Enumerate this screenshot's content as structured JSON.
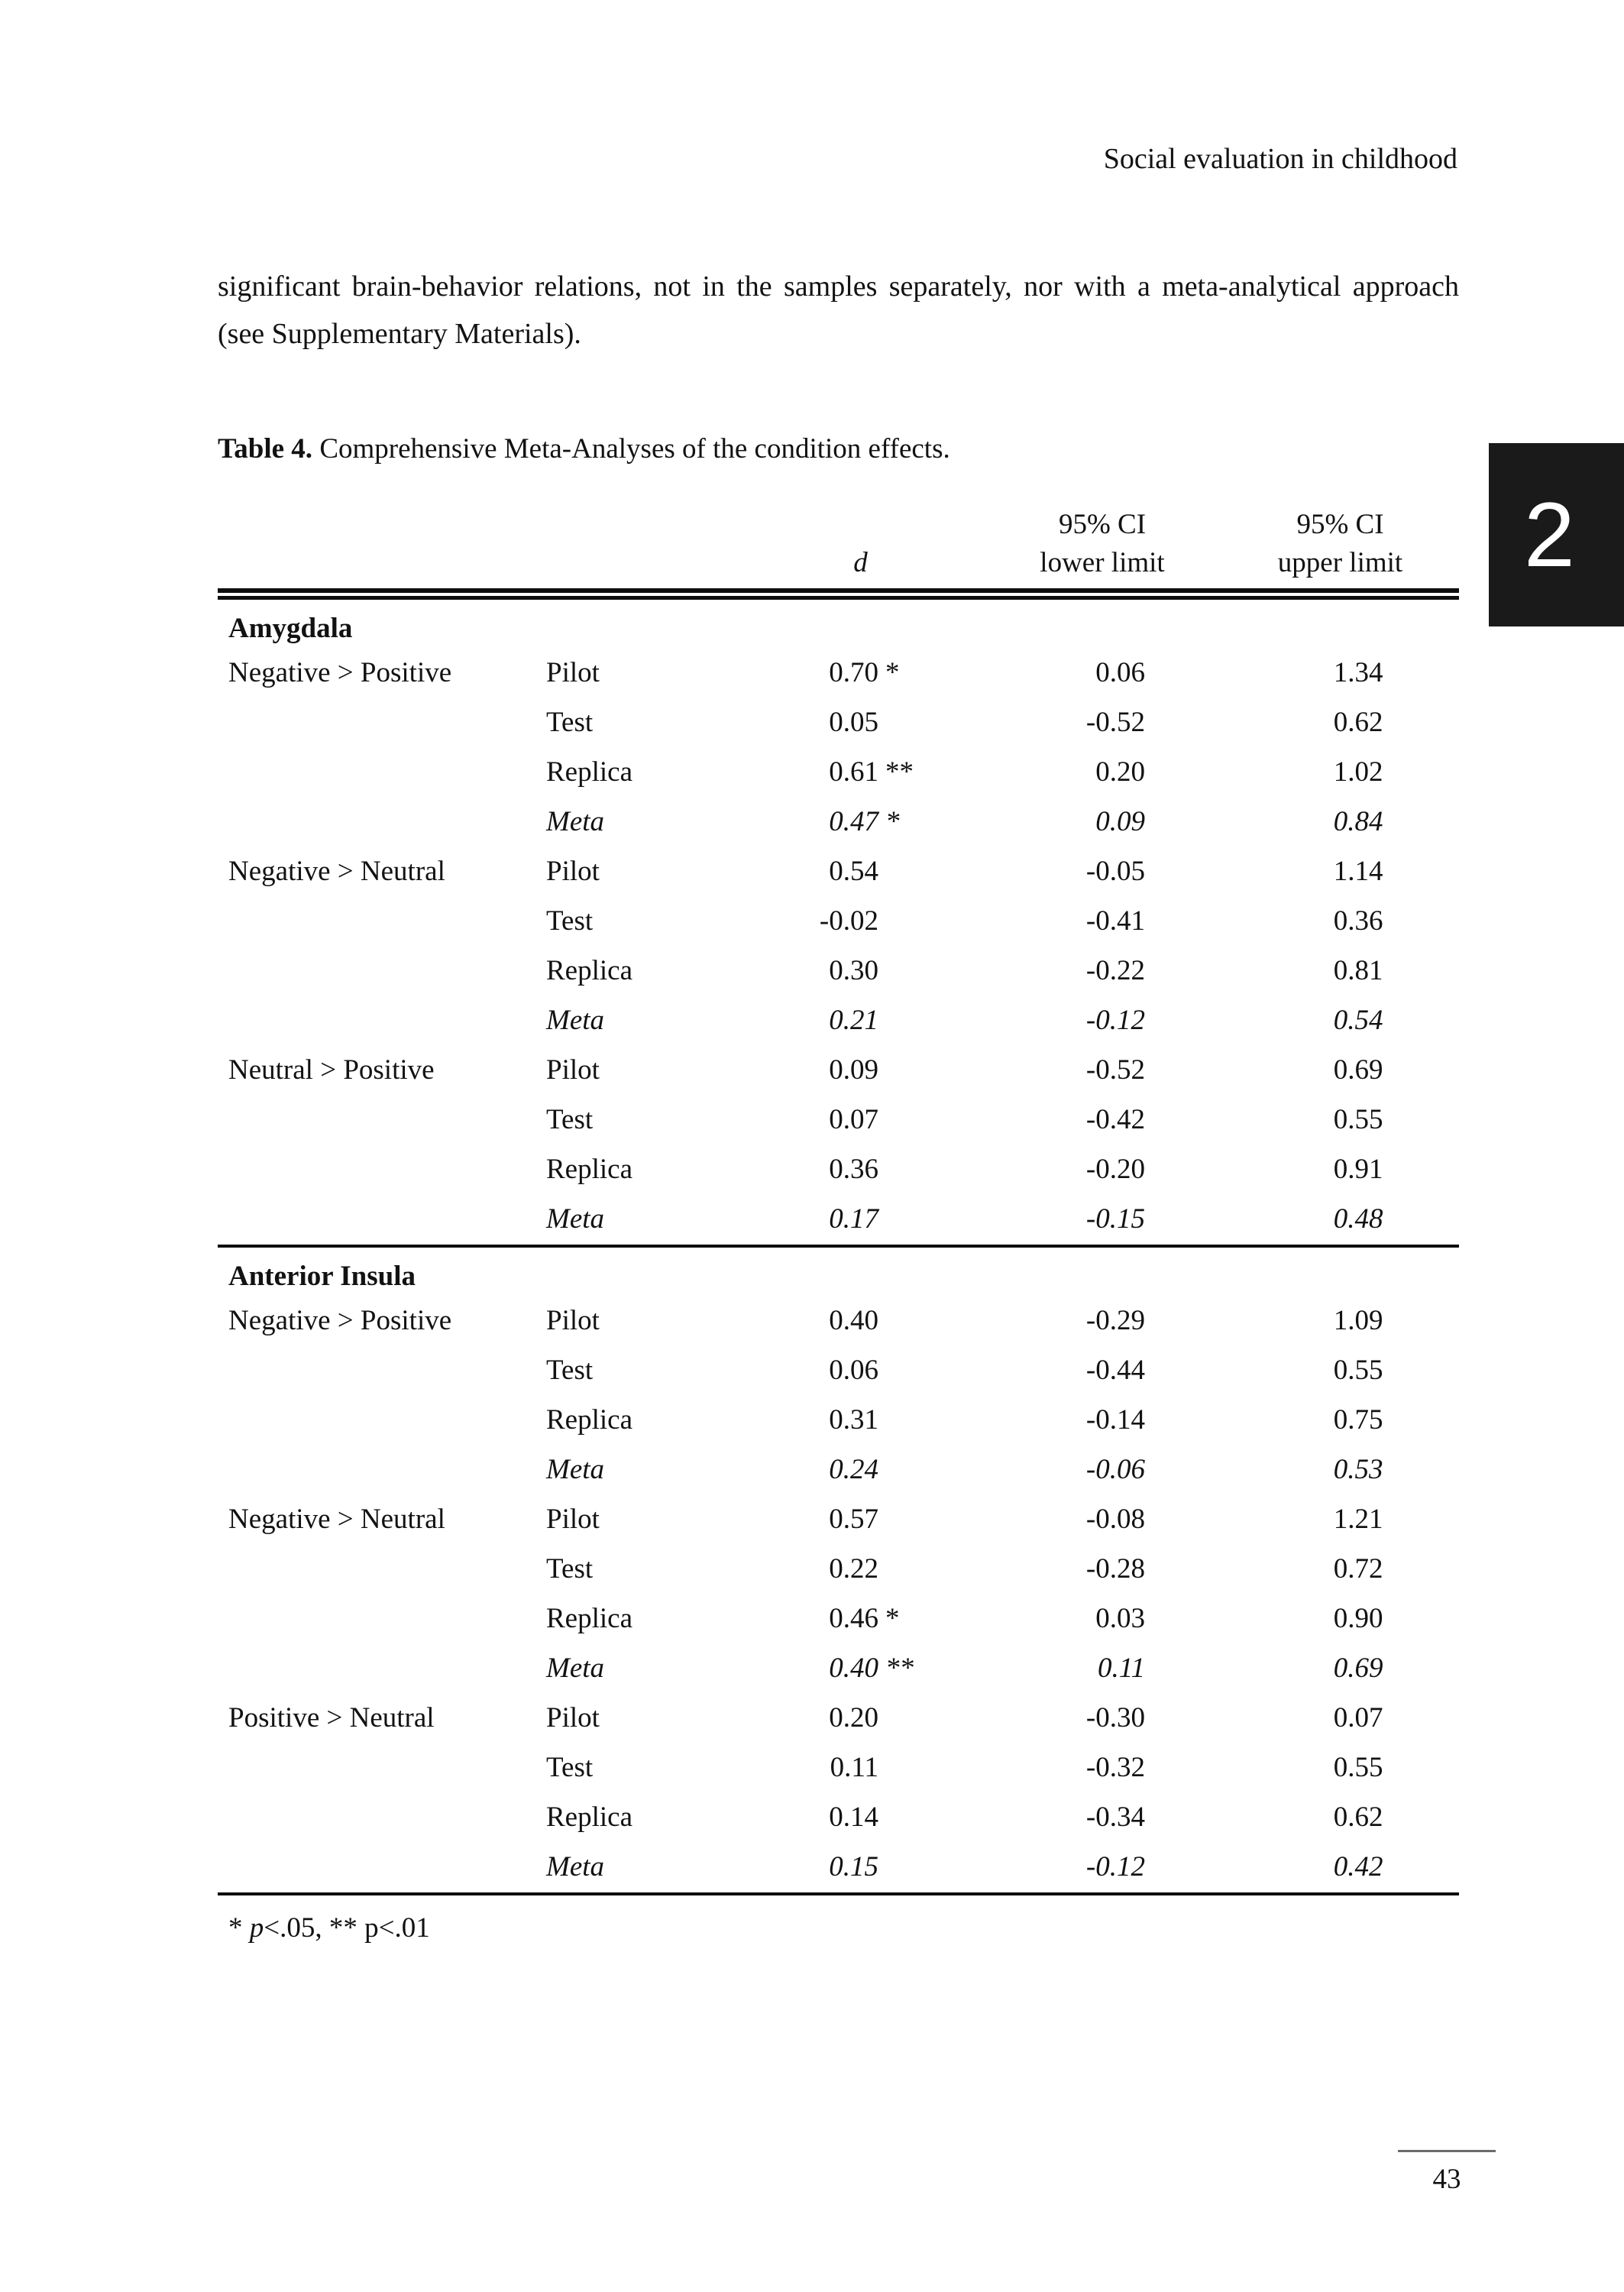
{
  "page": {
    "running_head": "Social evaluation in childhood",
    "chapter_tab": "2",
    "page_number": "43"
  },
  "colors": {
    "chapter_tab_bg": "#1a1a1a",
    "text": "#121212"
  },
  "paragraph": "significant brain-behavior relations, not in the samples separately, nor with a meta-analytical approach (see Supplementary Materials).",
  "table": {
    "caption_label": "Table 4.",
    "caption_text": " Comprehensive Meta-Analyses of the condition effects.",
    "columns": {
      "d": "d",
      "lower": [
        "95% CI",
        "lower limit"
      ],
      "upper": [
        "95% CI",
        "upper limit"
      ]
    },
    "sections": [
      {
        "name": "Amygdala",
        "groups": [
          {
            "contrast": "Negative > Positive",
            "rows": [
              {
                "sample": "Pilot",
                "d": "0.70",
                "star": "*",
                "lower": "0.06",
                "upper": "1.34"
              },
              {
                "sample": "Test",
                "d": "0.05",
                "star": "",
                "lower": "-0.52",
                "upper": "0.62"
              },
              {
                "sample": "Replica",
                "d": "0.61",
                "star": "**",
                "lower": "0.20",
                "upper": "1.02"
              },
              {
                "sample": "Meta",
                "d": "0.47",
                "star": "*",
                "lower": "0.09",
                "upper": "0.84",
                "meta": true
              }
            ]
          },
          {
            "contrast": "Negative > Neutral",
            "rows": [
              {
                "sample": "Pilot",
                "d": "0.54",
                "star": "",
                "lower": "-0.05",
                "upper": "1.14"
              },
              {
                "sample": "Test",
                "d": "-0.02",
                "star": "",
                "lower": "-0.41",
                "upper": "0.36"
              },
              {
                "sample": "Replica",
                "d": "0.30",
                "star": "",
                "lower": "-0.22",
                "upper": "0.81"
              },
              {
                "sample": "Meta",
                "d": "0.21",
                "star": "",
                "lower": "-0.12",
                "upper": "0.54",
                "meta": true
              }
            ]
          },
          {
            "contrast": "Neutral > Positive",
            "rows": [
              {
                "sample": "Pilot",
                "d": "0.09",
                "star": "",
                "lower": "-0.52",
                "upper": "0.69"
              },
              {
                "sample": "Test",
                "d": "0.07",
                "star": "",
                "lower": "-0.42",
                "upper": "0.55"
              },
              {
                "sample": "Replica",
                "d": "0.36",
                "star": "",
                "lower": "-0.20",
                "upper": "0.91"
              },
              {
                "sample": "Meta",
                "d": "0.17",
                "star": "",
                "lower": "-0.15",
                "upper": "0.48",
                "meta": true
              }
            ]
          }
        ]
      },
      {
        "name": "Anterior Insula",
        "groups": [
          {
            "contrast": "Negative > Positive",
            "rows": [
              {
                "sample": "Pilot",
                "d": "0.40",
                "star": "",
                "lower": "-0.29",
                "upper": "1.09"
              },
              {
                "sample": "Test",
                "d": "0.06",
                "star": "",
                "lower": "-0.44",
                "upper": "0.55"
              },
              {
                "sample": "Replica",
                "d": "0.31",
                "star": "",
                "lower": "-0.14",
                "upper": "0.75"
              },
              {
                "sample": "Meta",
                "d": "0.24",
                "star": "",
                "lower": "-0.06",
                "upper": "0.53",
                "meta": true
              }
            ]
          },
          {
            "contrast": "Negative > Neutral",
            "rows": [
              {
                "sample": "Pilot",
                "d": "0.57",
                "star": "",
                "lower": "-0.08",
                "upper": "1.21"
              },
              {
                "sample": "Test",
                "d": "0.22",
                "star": "",
                "lower": "-0.28",
                "upper": "0.72"
              },
              {
                "sample": "Replica",
                "d": "0.46",
                "star": "*",
                "lower": "0.03",
                "upper": "0.90"
              },
              {
                "sample": "Meta",
                "d": "0.40",
                "star": "**",
                "lower": "0.11",
                "upper": "0.69",
                "meta": true
              }
            ]
          },
          {
            "contrast": "Positive > Neutral",
            "rows": [
              {
                "sample": "Pilot",
                "d": "0.20",
                "star": "",
                "lower": "-0.30",
                "upper": "0.07"
              },
              {
                "sample": "Test",
                "d": "0.11",
                "star": "",
                "lower": "-0.32",
                "upper": "0.55"
              },
              {
                "sample": "Replica",
                "d": "0.14",
                "star": "",
                "lower": "-0.34",
                "upper": "0.62"
              },
              {
                "sample": "Meta",
                "d": "0.15",
                "star": "",
                "lower": "-0.12",
                "upper": "0.42",
                "meta": true
              }
            ]
          }
        ]
      }
    ],
    "footnote": {
      "prefix": "* ",
      "p_italic": "p",
      "suffix": "<.05, ** p<.01"
    }
  }
}
